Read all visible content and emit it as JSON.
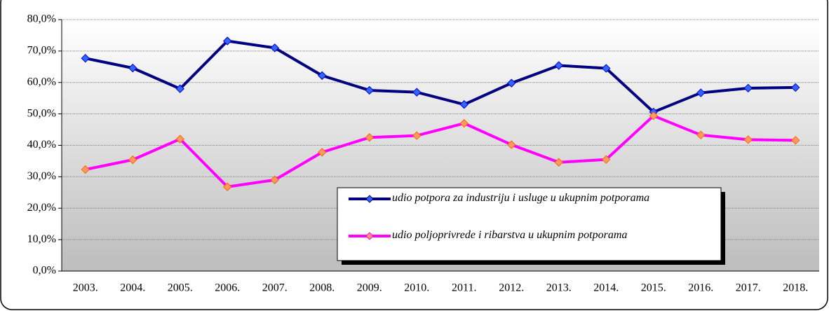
{
  "chart_data": {
    "type": "line",
    "categories": [
      "2003.",
      "2004.",
      "2005.",
      "2006.",
      "2007.",
      "2008.",
      "2009.",
      "2010.",
      "2011.",
      "2012.",
      "2013.",
      "2014.",
      "2015.",
      "2016.",
      "2017.",
      "2018."
    ],
    "series": [
      {
        "name": "udio potpora za industriju i usluge u ukupnim potporama",
        "color": "#000080",
        "marker_color": "#3366ff",
        "values": [
          67.7,
          64.6,
          58.0,
          73.2,
          71.0,
          62.2,
          57.5,
          56.9,
          53.0,
          59.8,
          65.4,
          64.5,
          50.6,
          56.7,
          58.2,
          58.4
        ]
      },
      {
        "name": "udio poljoprivrede i ribarstva u ukupnim potporama",
        "color": "#ff00ff",
        "marker_color": "#ff9966",
        "values": [
          32.3,
          35.4,
          42.0,
          26.8,
          29.0,
          37.8,
          42.5,
          43.1,
          47.0,
          40.2,
          34.6,
          35.5,
          49.4,
          43.3,
          41.8,
          41.6
        ]
      }
    ],
    "ylim": [
      0,
      80
    ],
    "yticks": [
      {
        "value": 0,
        "label": "0,0%"
      },
      {
        "value": 10,
        "label": "10,0%"
      },
      {
        "value": 20,
        "label": "20,0%"
      },
      {
        "value": 30,
        "label": "30,0%"
      },
      {
        "value": 40,
        "label": "40,0%"
      },
      {
        "value": 50,
        "label": "50,0%"
      },
      {
        "value": 60,
        "label": "60,0%"
      },
      {
        "value": 70,
        "label": "70,0%"
      },
      {
        "value": 80,
        "label": "80,0%"
      }
    ],
    "grid": true,
    "legend": "lower right"
  }
}
